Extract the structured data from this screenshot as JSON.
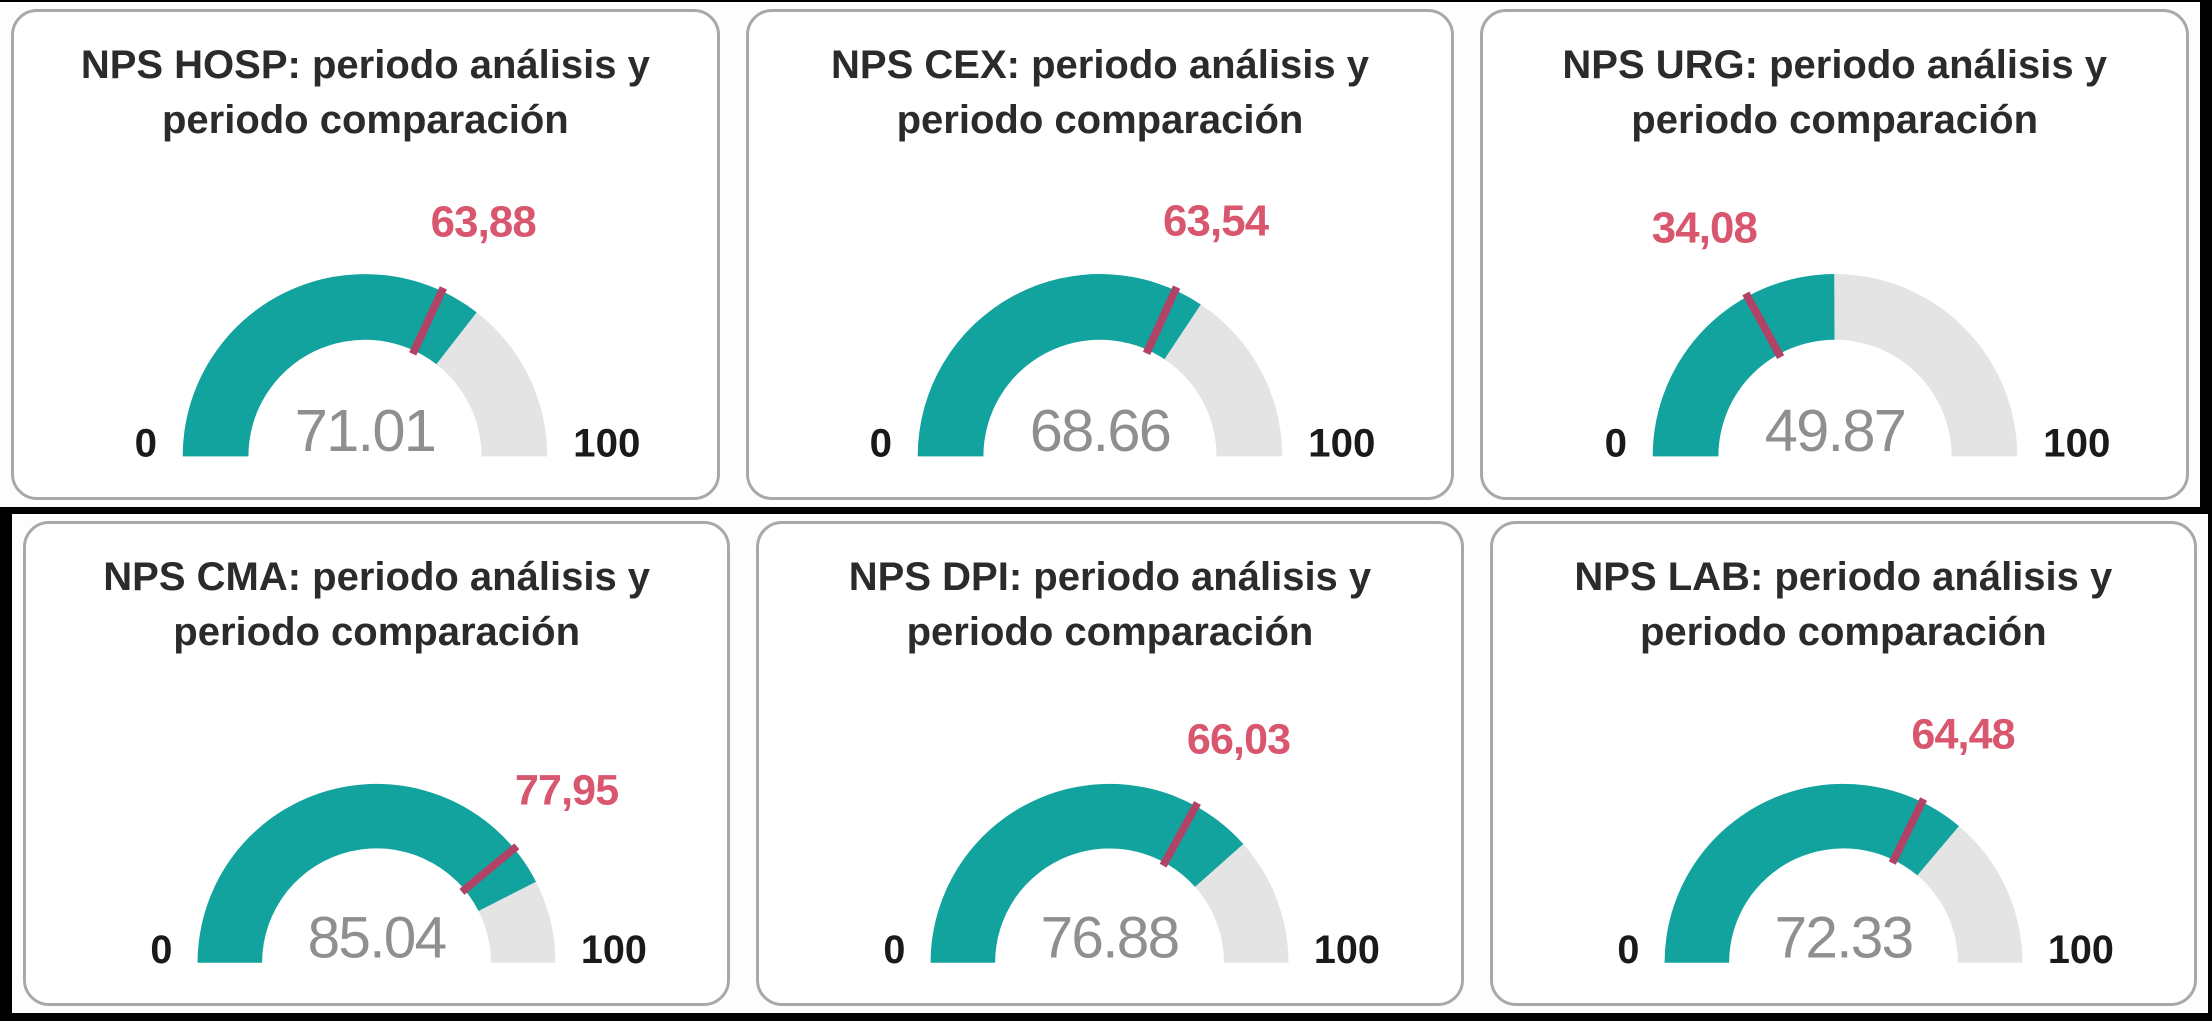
{
  "page": {
    "background": "#000000",
    "panel_background": "#fdfdfd"
  },
  "colors": {
    "teal": "#12a39e",
    "track": "#e4e4e4",
    "target_tick": "#b04366",
    "target_label": "#d9566f",
    "value_label": "#8f8f8f",
    "minmax_label": "#1a1a1a",
    "title": "#2b2b2b",
    "card_border": "#a9a9a9",
    "card_bg": "#ffffff"
  },
  "chart_data": [
    {
      "type": "gauge",
      "title": "NPS HOSP: periodo análisis y periodo comparación",
      "min": 0,
      "max": 100,
      "value": 71.01,
      "target": 63.88,
      "value_label": "71.01",
      "target_label": "63,88",
      "min_label": "0",
      "max_label": "100"
    },
    {
      "type": "gauge",
      "title": "NPS CEX: periodo análisis y periodo comparación",
      "min": 0,
      "max": 100,
      "value": 68.66,
      "target": 63.54,
      "value_label": "68.66",
      "target_label": "63,54",
      "min_label": "0",
      "max_label": "100"
    },
    {
      "type": "gauge",
      "title": "NPS URG: periodo análisis y periodo comparación",
      "min": 0,
      "max": 100,
      "value": 49.87,
      "target": 34.08,
      "value_label": "49.87",
      "target_label": "34,08",
      "min_label": "0",
      "max_label": "100"
    },
    {
      "type": "gauge",
      "title": "NPS CMA: periodo análisis y periodo comparación",
      "min": 0,
      "max": 100,
      "value": 85.04,
      "target": 77.95,
      "value_label": "85.04",
      "target_label": "77,95",
      "min_label": "0",
      "max_label": "100"
    },
    {
      "type": "gauge",
      "title": "NPS DPI: periodo análisis y periodo comparación",
      "min": 0,
      "max": 100,
      "value": 76.88,
      "target": 66.03,
      "value_label": "76.88",
      "target_label": "66,03",
      "min_label": "0",
      "max_label": "100"
    },
    {
      "type": "gauge",
      "title": "NPS LAB: periodo análisis y periodo comparación",
      "min": 0,
      "max": 100,
      "value": 72.33,
      "target": 64.48,
      "value_label": "72.33",
      "target_label": "64,48",
      "min_label": "0",
      "max_label": "100"
    }
  ]
}
